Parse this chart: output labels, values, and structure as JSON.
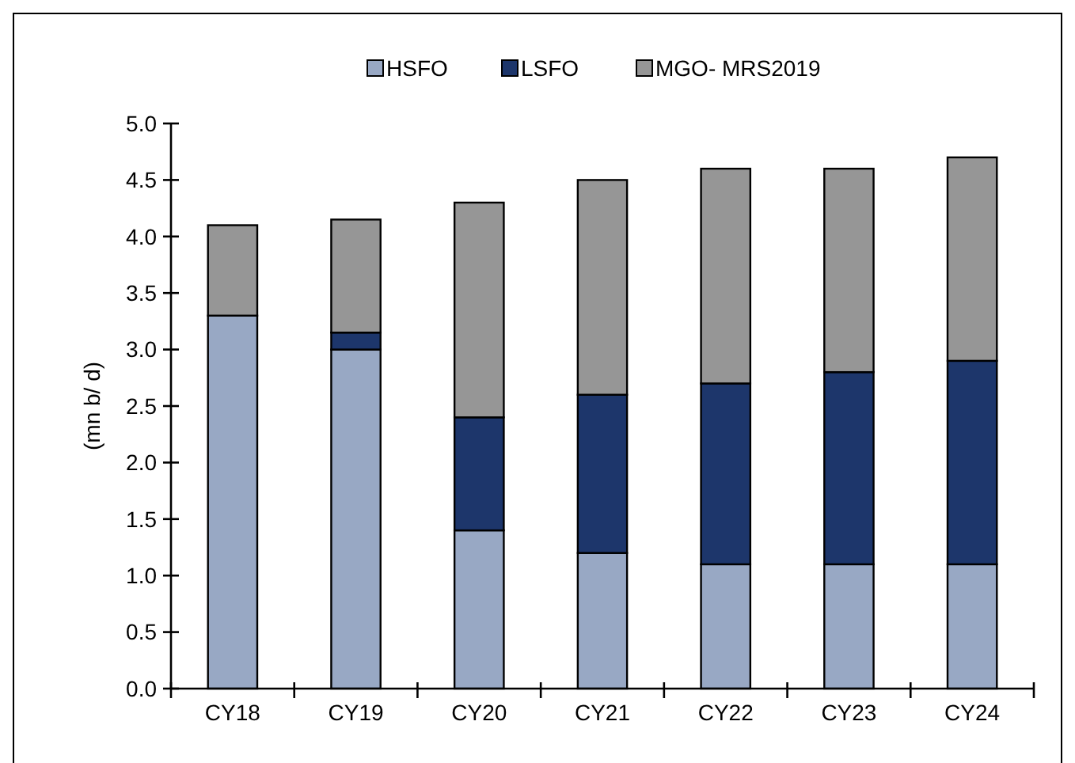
{
  "chart_data": {
    "type": "bar",
    "stacked": true,
    "ylabel": "(mn b/ d)",
    "categories": [
      "CY18",
      "CY19",
      "CY20",
      "CY21",
      "CY22",
      "CY23",
      "CY24"
    ],
    "series": [
      {
        "name": "HSFO",
        "color": "#98a8c4",
        "values": [
          3.3,
          3.0,
          1.4,
          1.2,
          1.1,
          1.1,
          1.1
        ]
      },
      {
        "name": "LSFO",
        "color": "#1d366b",
        "values": [
          0,
          0.15,
          1.0,
          1.4,
          1.6,
          1.7,
          1.8
        ]
      },
      {
        "name": "MGO- MRS2019",
        "color": "#969696",
        "values": [
          0.8,
          1.0,
          1.9,
          1.9,
          1.9,
          1.8,
          1.8
        ]
      }
    ],
    "ylim": [
      0,
      5
    ],
    "yticks": [
      {
        "value": 0,
        "label": "0.0"
      },
      {
        "value": 0.5,
        "label": "0.5"
      },
      {
        "value": 1,
        "label": "1.0"
      },
      {
        "value": 1.5,
        "label": "1.5"
      },
      {
        "value": 2,
        "label": "2.0"
      },
      {
        "value": 2.5,
        "label": "2.5"
      },
      {
        "value": 3,
        "label": "3.0"
      },
      {
        "value": 3.5,
        "label": "3.5"
      },
      {
        "value": 4,
        "label": "4.0"
      },
      {
        "value": 4.5,
        "label": "4.5"
      },
      {
        "value": 5,
        "label": "5.0"
      }
    ],
    "legend": "top",
    "grid": false
  }
}
